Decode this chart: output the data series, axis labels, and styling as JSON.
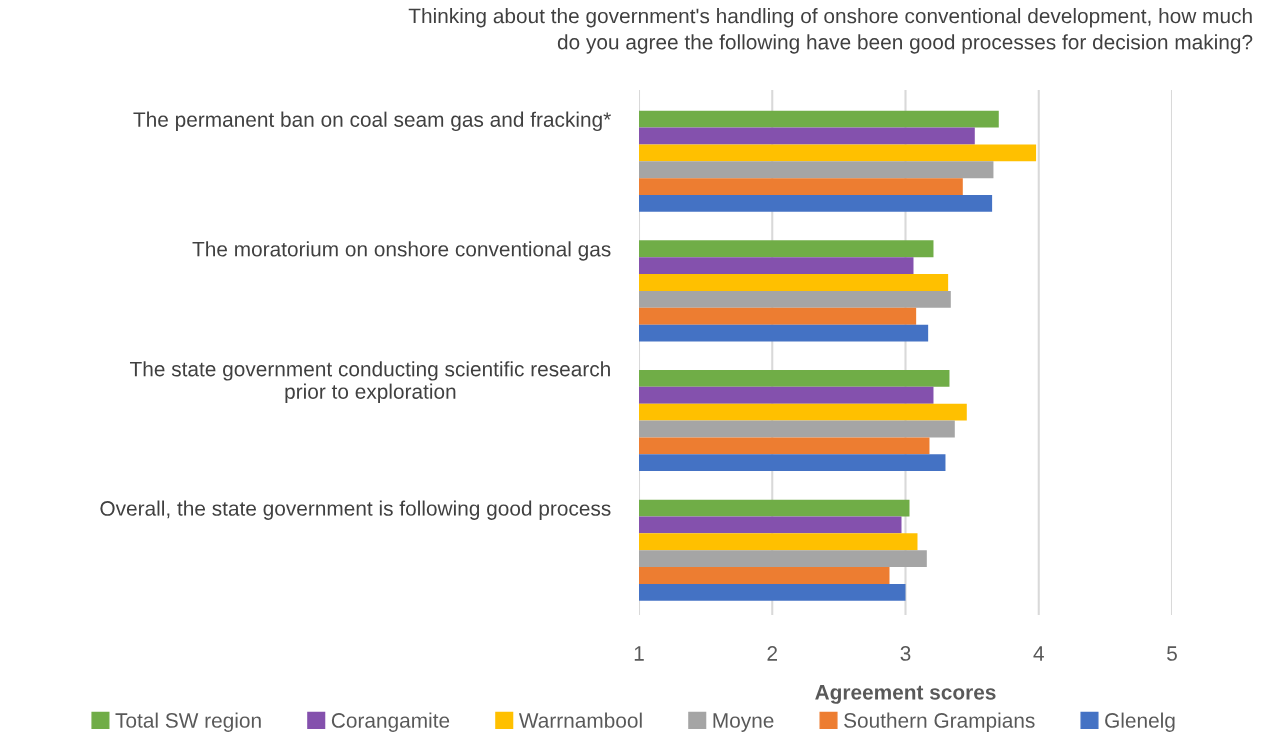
{
  "chart_data": {
    "type": "bar",
    "orientation": "horizontal",
    "title": "Thinking about the government's handling of onshore conventional development, how much\ndo you agree the following have been good processes for decision making?",
    "xlabel": "Agreement scores",
    "categories": [
      "The permanent ban on coal seam gas and fracking*",
      "The moratorium on onshore conventional gas",
      "The state government conducting scientific research\nprior to exploration",
      "Overall, the state government is following good process"
    ],
    "series": [
      {
        "name": "Total SW region",
        "color": "#70ad47",
        "values": [
          3.7,
          3.21,
          3.33,
          3.03
        ]
      },
      {
        "name": "Corangamite",
        "color": "#8451ad",
        "values": [
          3.52,
          3.06,
          3.21,
          2.97
        ]
      },
      {
        "name": "Warrnambool",
        "color": "#ffc000",
        "values": [
          3.98,
          3.32,
          3.46,
          3.09
        ]
      },
      {
        "name": "Moyne",
        "color": "#a5a5a5",
        "values": [
          3.66,
          3.34,
          3.37,
          3.16
        ]
      },
      {
        "name": "Southern Grampians",
        "color": "#ed7d31",
        "values": [
          3.43,
          3.08,
          3.18,
          2.88
        ]
      },
      {
        "name": "Glenelg",
        "color": "#4472c4",
        "values": [
          3.65,
          3.17,
          3.3,
          3.0
        ]
      }
    ],
    "xlim": [
      1,
      5
    ],
    "xticks": [
      1,
      2,
      3,
      4,
      5
    ],
    "grid": "x",
    "legend": "bottom"
  }
}
